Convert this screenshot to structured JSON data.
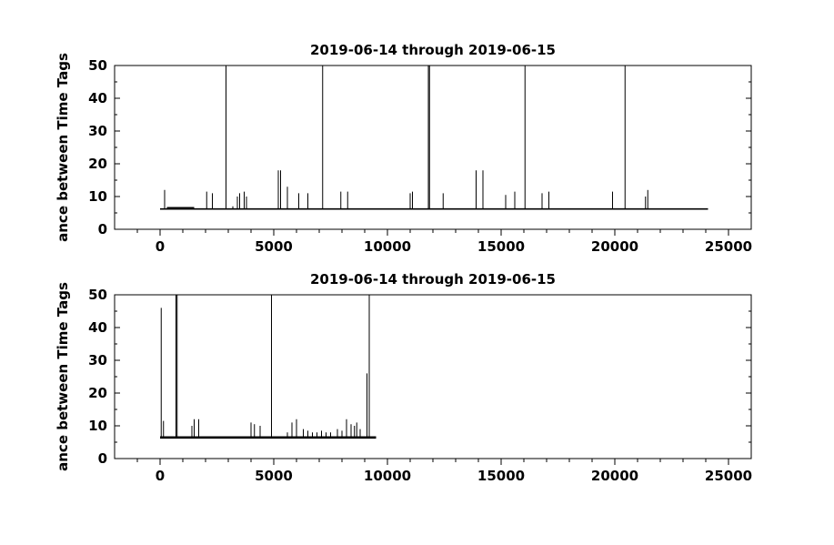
{
  "chart_data": [
    {
      "type": "line",
      "title": "2019-06-14 through 2019-06-15",
      "ylabel": "ance between Time Tags",
      "xlabel": "",
      "xlim": [
        -2000,
        26000
      ],
      "ylim": [
        0,
        50
      ],
      "xticks": [
        0,
        5000,
        10000,
        15000,
        20000,
        25000
      ],
      "yticks": [
        0,
        10,
        20,
        30,
        40,
        50
      ],
      "grid": false,
      "baseline": 6.2,
      "x_end": 24100,
      "dense_bands": [
        {
          "x0": 300,
          "x1": 1500,
          "y": 6.8
        }
      ],
      "series": [
        {
          "spikes": [
            [
              200,
              12
            ],
            [
              2050,
              11.5
            ],
            [
              2300,
              11
            ],
            [
              2900,
              50
            ],
            [
              3200,
              7
            ],
            [
              3400,
              10
            ],
            [
              3500,
              11
            ],
            [
              3700,
              11.5
            ],
            [
              3800,
              10
            ],
            [
              5200,
              18
            ],
            [
              5300,
              18
            ],
            [
              5600,
              13
            ],
            [
              6100,
              11
            ],
            [
              6500,
              11
            ],
            [
              7150,
              50
            ],
            [
              7950,
              11.5
            ],
            [
              8250,
              11.5
            ],
            [
              11000,
              11
            ],
            [
              11100,
              11.5
            ],
            [
              11800,
              50
            ],
            [
              11850,
              50
            ],
            [
              12450,
              11
            ],
            [
              13900,
              18
            ],
            [
              14200,
              18
            ],
            [
              15200,
              10.5
            ],
            [
              15600,
              11.5
            ],
            [
              16050,
              50
            ],
            [
              16800,
              11
            ],
            [
              17100,
              11.5
            ],
            [
              19900,
              11.5
            ],
            [
              20450,
              50
            ],
            [
              21350,
              10
            ],
            [
              21450,
              12
            ]
          ]
        }
      ]
    },
    {
      "type": "line",
      "title": "2019-06-14 through 2019-06-15",
      "ylabel": "ance between Time Tags",
      "xlabel": "",
      "xlim": [
        -2000,
        26000
      ],
      "ylim": [
        0,
        50
      ],
      "xticks": [
        0,
        5000,
        10000,
        15000,
        20000,
        25000
      ],
      "yticks": [
        0,
        10,
        20,
        30,
        40,
        50
      ],
      "grid": false,
      "baseline": 6.3,
      "x_end": 9500,
      "dense_bands": [
        {
          "x0": 0,
          "x1": 9500,
          "y": 6.8
        }
      ],
      "series": [
        {
          "spikes": [
            [
              50,
              46
            ],
            [
              150,
              11.5
            ],
            [
              700,
              50
            ],
            [
              750,
              50
            ],
            [
              1400,
              10
            ],
            [
              1500,
              12
            ],
            [
              1700,
              12
            ],
            [
              4000,
              11
            ],
            [
              4150,
              10.5
            ],
            [
              4400,
              10
            ],
            [
              4900,
              50
            ],
            [
              5600,
              8
            ],
            [
              5800,
              11
            ],
            [
              6000,
              12
            ],
            [
              6300,
              9
            ],
            [
              6500,
              8.5
            ],
            [
              6700,
              8
            ],
            [
              6900,
              8
            ],
            [
              7100,
              8.5
            ],
            [
              7300,
              8
            ],
            [
              7500,
              8
            ],
            [
              7800,
              9
            ],
            [
              8000,
              8.5
            ],
            [
              8200,
              12
            ],
            [
              8400,
              10.5
            ],
            [
              8550,
              10
            ],
            [
              8650,
              11
            ],
            [
              8800,
              9
            ],
            [
              9100,
              26
            ],
            [
              9200,
              50
            ]
          ]
        }
      ]
    }
  ]
}
